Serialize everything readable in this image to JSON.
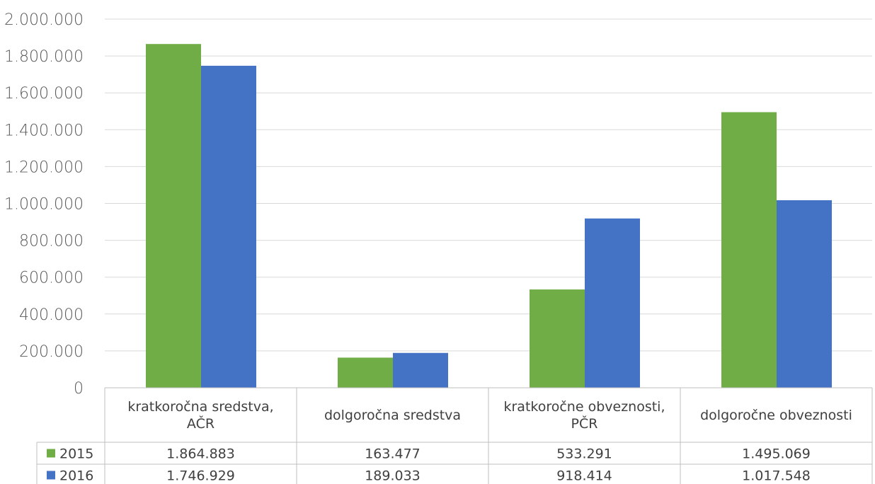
{
  "chart_data": {
    "type": "bar",
    "categories": [
      [
        "kratkoročna sredstva,",
        "AČR"
      ],
      [
        "dolgoročna sredstva"
      ],
      [
        "kratkoročne obveznosti,",
        "PČR"
      ],
      [
        "dolgoročne obveznosti"
      ]
    ],
    "series": [
      {
        "name": "2015",
        "color": "#70ad47",
        "values": [
          1864883,
          163477,
          533291,
          1495069
        ],
        "labels": [
          "1.864.883",
          "163.477",
          "533.291",
          "1.495.069"
        ]
      },
      {
        "name": "2016",
        "color": "#4472c4",
        "values": [
          1746929,
          189033,
          918414,
          1017548
        ],
        "labels": [
          "1.746.929",
          "189.033",
          "918.414",
          "1.017.548"
        ]
      }
    ],
    "ylim": [
      0,
      2000000
    ],
    "ticks": [
      0,
      200000,
      400000,
      600000,
      800000,
      1000000,
      1200000,
      1400000,
      1600000,
      1800000,
      2000000
    ],
    "tick_labels": [
      "0",
      "200.000",
      "400.000",
      "600.000",
      "800.000",
      "1.000.000",
      "1.200.000",
      "1.400.000",
      "1.600.000",
      "1.800.000",
      "2.000.000"
    ],
    "grid": true,
    "legend": "data-table",
    "title": "",
    "xlabel": "",
    "ylabel": ""
  }
}
